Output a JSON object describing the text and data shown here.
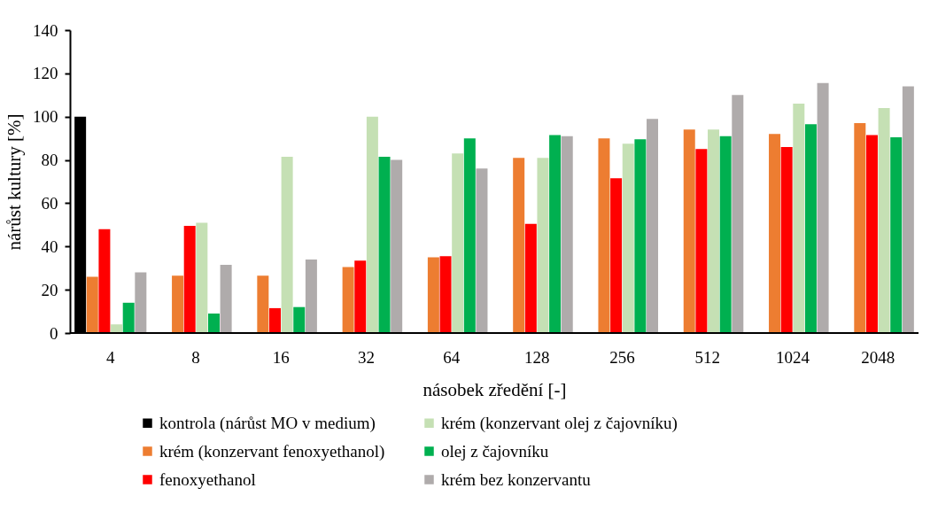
{
  "chart_data": {
    "type": "bar",
    "xlabel": "násobek zředění [-]",
    "ylabel": "nárůst kultury [%]",
    "categories": [
      "4",
      "8",
      "16",
      "32",
      "64",
      "128",
      "256",
      "512",
      "1024",
      "2048"
    ],
    "series": [
      {
        "name": "kontrola (nárůst MO v medium)",
        "color": "#000000",
        "values": [
          100,
          null,
          null,
          null,
          null,
          null,
          null,
          null,
          null,
          null
        ]
      },
      {
        "name": "krém (konzervant fenoxyethanol)",
        "color": "#ed7d31",
        "values": [
          26,
          26.5,
          26.5,
          30.5,
          35,
          81,
          90,
          94,
          92,
          97
        ]
      },
      {
        "name": "fenoxyethanol",
        "color": "#ff0000",
        "values": [
          48,
          49.5,
          11.5,
          33.5,
          35.5,
          50.5,
          71.5,
          85,
          86,
          91.5
        ]
      },
      {
        "name": "krém (konzervant olej z čajovníku)",
        "color": "#c5e0b4",
        "values": [
          4,
          51,
          81.5,
          100,
          83,
          81,
          87.5,
          94,
          106,
          104
        ]
      },
      {
        "name": "olej z čajovníku",
        "color": "#00b050",
        "values": [
          14,
          9,
          12,
          81.5,
          90,
          91.5,
          89.5,
          91,
          96.5,
          90.5
        ]
      },
      {
        "name": "krém bez konzervantu",
        "color": "#afabab",
        "values": [
          28,
          31.5,
          34,
          80,
          76,
          91,
          99,
          110,
          115.5,
          114
        ]
      }
    ],
    "ylim": [
      0,
      140
    ],
    "yticks": [
      0,
      20,
      40,
      60,
      80,
      100,
      120,
      140
    ],
    "grid": false,
    "legend": "bottom"
  }
}
